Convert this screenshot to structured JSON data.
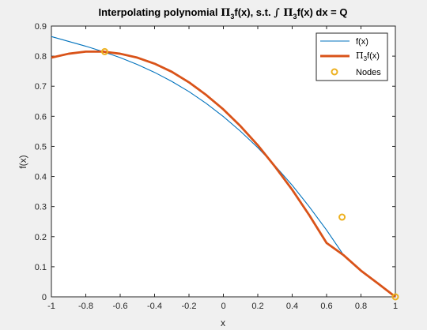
{
  "chart_data": {
    "type": "line",
    "title": {
      "prefix": "Interpolating polynomial ",
      "pi": "Π",
      "sub": "3",
      "mid": "f(x), s.t. ",
      "integral": "∫ ",
      "pi2": "Π",
      "sub2": "3",
      "suffix": "f(x) dx = Q"
    },
    "xlabel": "x",
    "ylabel": "f(x)",
    "xlim": [
      -1,
      1
    ],
    "ylim": [
      0,
      0.9
    ],
    "xticks": [
      "-1",
      "-0.8",
      "-0.6",
      "-0.4",
      "-0.2",
      "0",
      "0.2",
      "0.4",
      "0.6",
      "0.8",
      "1"
    ],
    "yticks": [
      "0",
      "0.1",
      "0.2",
      "0.3",
      "0.4",
      "0.5",
      "0.6",
      "0.7",
      "0.8",
      "0.9"
    ],
    "legend": {
      "position": "top-right",
      "f_label": "f(x)",
      "pi_label_main": "Π",
      "pi_label_sub": "3",
      "pi_label_rest": "f(x)",
      "nodes_label": "Nodes"
    },
    "series": [
      {
        "name": "f(x)",
        "color": "#0072bd",
        "x": [
          -1,
          -0.9,
          -0.8,
          -0.7,
          -0.6,
          -0.5,
          -0.4,
          -0.3,
          -0.2,
          -0.1,
          0,
          0.1,
          0.2,
          0.3,
          0.4,
          0.5,
          0.6,
          0.7,
          0.8,
          0.9,
          1
        ],
        "y": [
          0.865,
          0.849,
          0.833,
          0.815,
          0.795,
          0.772,
          0.746,
          0.716,
          0.682,
          0.643,
          0.599,
          0.55,
          0.496,
          0.436,
          0.371,
          0.299,
          0.222,
          0.138,
          0.087,
          0.044,
          0
        ]
      },
      {
        "name": "Π3f(x)",
        "color": "#d95319",
        "x": [
          -1,
          -0.9,
          -0.8,
          -0.7,
          -0.6,
          -0.5,
          -0.4,
          -0.3,
          -0.2,
          -0.1,
          0,
          0.1,
          0.2,
          0.3,
          0.4,
          0.5,
          0.6,
          0.7,
          0.8,
          0.9,
          1
        ],
        "y": [
          0.795,
          0.808,
          0.815,
          0.815,
          0.808,
          0.795,
          0.775,
          0.748,
          0.713,
          0.671,
          0.623,
          0.567,
          0.504,
          0.433,
          0.356,
          0.271,
          0.179,
          0.138,
          0.087,
          0.044,
          0
        ]
      }
    ],
    "nodes": {
      "name": "Nodes",
      "color": "#edb120",
      "x": [
        -0.69,
        0.69,
        1.0
      ],
      "y": [
        0.815,
        0.265,
        0.0
      ]
    }
  }
}
